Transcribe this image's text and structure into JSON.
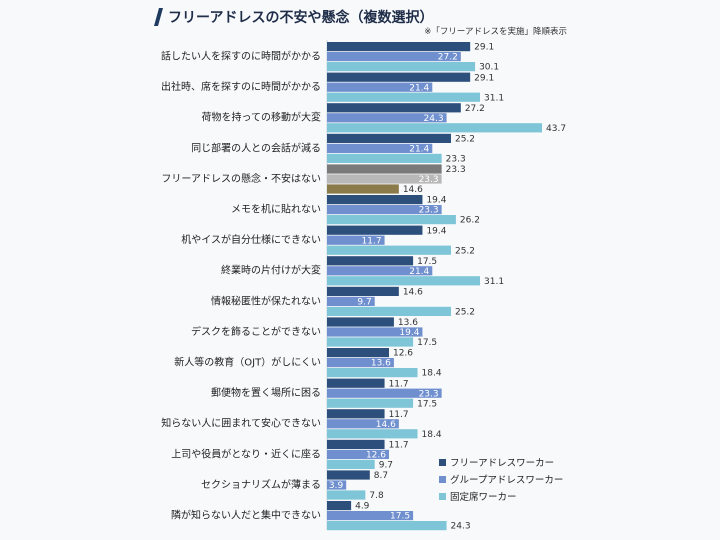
{
  "header": {
    "title": "フリーアドレスの不安や懸念（複数選択）",
    "note": "※「フリーアドレスを実施」降順表示"
  },
  "colors": {
    "accent": "#1f3a5f",
    "free_address_worker": "#2c4f7c",
    "group_address_worker": "#6f8fcf",
    "fixed_seat_worker": "#7ec5d8",
    "highlight_free": "#7a7a7a",
    "highlight_group": "#b8b8b8",
    "highlight_fixed": "#8b7a4a"
  },
  "chart_data": {
    "type": "bar",
    "orientation": "horizontal",
    "categories": [
      "話したい人を探すのに時間がかかる",
      "出社時、席を探すのに時間がかかる",
      "荷物を持っての移動が大変",
      "同じ部署の人との会話が減る",
      "フリーアドレスの懸念・不安はない",
      "メモを机に貼れない",
      "机やイスが自分仕様にできない",
      "終業時の片付けが大変",
      "情報秘匿性が保たれない",
      "デスクを飾ることができない",
      "新人等の教育（OJT）がしにくい",
      "郵便物を置く場所に困る",
      "知らない人に囲まれて安心できない",
      "上司や役員がとなり・近くに座る",
      "セクショナリズムが薄まる",
      "隣が知らない人だと集中できない"
    ],
    "series": [
      {
        "name": "フリーアドレスワーカー",
        "values": [
          29.1,
          29.1,
          27.2,
          25.2,
          23.3,
          19.4,
          19.4,
          17.5,
          14.6,
          13.6,
          12.6,
          11.7,
          11.7,
          11.7,
          8.7,
          4.9
        ]
      },
      {
        "name": "グループアドレスワーカー",
        "values": [
          27.2,
          21.4,
          24.3,
          21.4,
          23.3,
          23.3,
          11.7,
          21.4,
          9.7,
          19.4,
          13.6,
          23.3,
          14.6,
          12.6,
          3.9,
          17.5
        ]
      },
      {
        "name": "固定席ワーカー",
        "values": [
          30.1,
          31.1,
          43.7,
          23.3,
          14.6,
          26.2,
          25.2,
          31.1,
          25.2,
          17.5,
          18.4,
          17.5,
          18.4,
          9.7,
          7.8,
          24.3
        ]
      }
    ],
    "highlight_category_index": 4,
    "xlim": [
      0,
      45
    ],
    "legend_position": "bottom-right",
    "grid": false
  }
}
